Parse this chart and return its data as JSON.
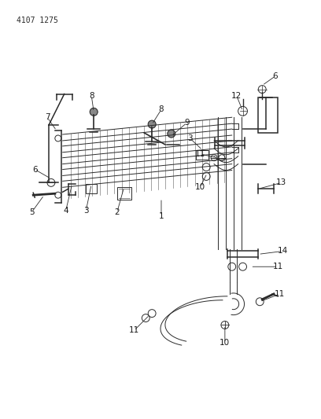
{
  "title_text": "4107 1275",
  "bg_color": "#ffffff",
  "line_color": "#2a2a2a",
  "label_color": "#1a1a1a",
  "fig_width": 4.08,
  "fig_height": 5.33,
  "dpi": 100
}
